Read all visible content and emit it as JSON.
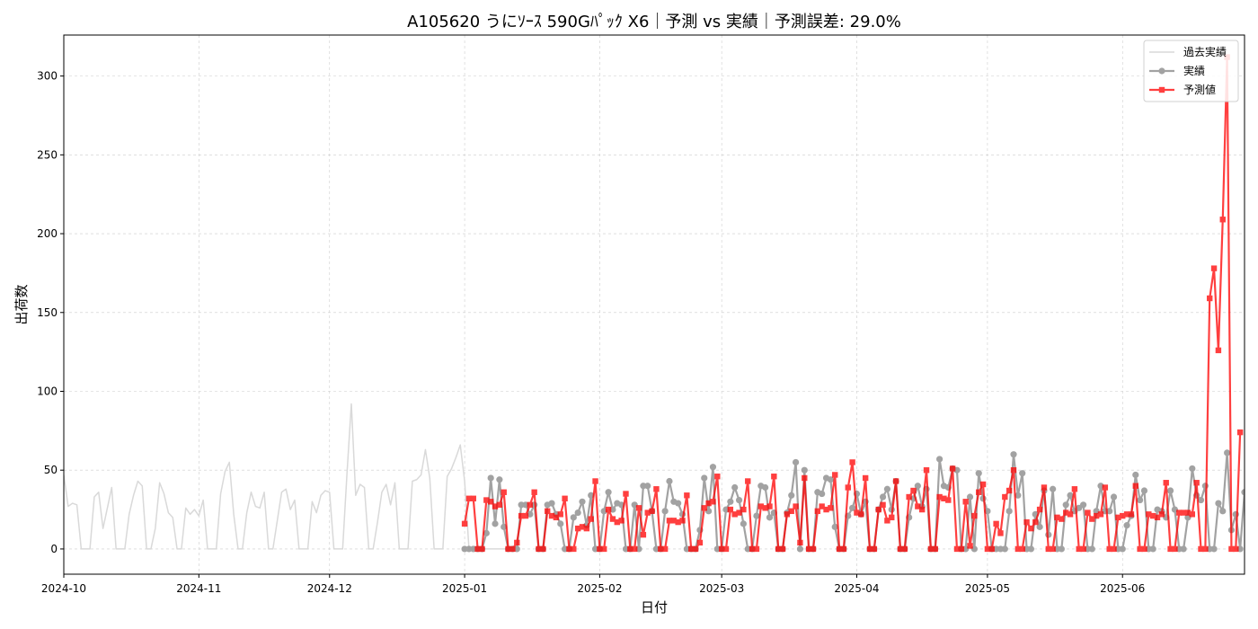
{
  "chart_data": {
    "type": "line",
    "title": "A105620 うにｿｰｽ 590Gﾊﾟｯｸ X6｜予測 vs 実績｜予測誤差: 29.0%",
    "xlabel": "日付",
    "ylabel": "出荷数",
    "xlim": [
      "2024-10-01",
      "2025-06-29"
    ],
    "ylim": [
      -16,
      326
    ],
    "x_ticks": [
      "2024-10",
      "2024-11",
      "2024-12",
      "2025-01",
      "2025-02",
      "2025-03",
      "2025-04",
      "2025-05",
      "2025-06"
    ],
    "y_ticks": [
      0,
      50,
      100,
      150,
      200,
      250,
      300
    ],
    "grid": true,
    "legend_position": "top-right",
    "colors": {
      "history": "#d9d9d9",
      "actual": "#999999",
      "forecast": "#ff0000"
    },
    "series": [
      {
        "name": "過去実績",
        "style": "line",
        "start_date": "2024-10-01",
        "values": [
          47,
          27,
          29,
          28,
          0,
          0,
          0,
          33,
          36,
          13,
          26,
          39,
          0,
          0,
          0,
          22,
          34,
          43,
          40,
          0,
          0,
          13,
          42,
          35,
          23,
          20,
          0,
          0,
          26,
          22,
          25,
          21,
          31,
          0,
          0,
          0,
          35,
          49,
          55,
          22,
          0,
          0,
          23,
          36,
          27,
          26,
          36,
          0,
          0,
          18,
          36,
          38,
          25,
          31,
          0,
          0,
          0,
          30,
          23,
          34,
          37,
          36,
          0,
          0,
          0,
          48,
          92,
          34,
          41,
          39,
          0,
          0,
          17,
          36,
          41,
          28,
          42,
          0,
          0,
          0,
          43,
          44,
          47,
          63,
          45,
          0,
          0,
          0,
          46,
          51,
          58,
          66,
          43,
          0,
          0,
          0,
          0,
          0,
          0,
          0,
          0,
          0,
          0
        ]
      },
      {
        "name": "実績",
        "style": "line+circle",
        "start_date": "2025-01-01",
        "values": [
          0,
          0,
          0,
          0,
          0,
          10,
          45,
          16,
          44,
          14,
          0,
          0,
          0,
          28,
          28,
          22,
          28,
          0,
          0,
          28,
          29,
          22,
          16,
          0,
          0,
          20,
          23,
          30,
          15,
          34,
          0,
          0,
          24,
          36,
          25,
          29,
          28,
          0,
          0,
          28,
          0,
          40,
          40,
          24,
          0,
          0,
          24,
          43,
          30,
          29,
          22,
          0,
          0,
          0,
          12,
          45,
          24,
          52,
          0,
          0,
          25,
          30,
          39,
          31,
          16,
          0,
          0,
          21,
          40,
          39,
          20,
          23,
          0,
          0,
          23,
          34,
          55,
          0,
          50,
          0,
          0,
          36,
          35,
          45,
          44,
          14,
          0,
          0,
          21,
          26,
          35,
          22,
          30,
          0,
          0,
          25,
          33,
          38,
          25,
          43,
          0,
          0,
          20,
          32,
          40,
          27,
          38,
          0,
          0,
          57,
          40,
          39,
          51,
          50,
          0,
          0,
          33,
          0,
          48,
          32,
          24,
          0,
          0,
          0,
          0,
          24,
          60,
          34,
          48,
          0,
          0,
          22,
          14,
          37,
          9,
          38,
          0,
          0,
          28,
          34,
          24,
          26,
          28,
          0,
          0,
          24,
          40,
          24,
          24,
          33,
          0,
          0,
          15,
          21,
          47,
          31,
          37,
          0,
          0,
          25,
          24,
          20,
          37,
          25,
          0,
          0,
          20,
          51,
          34,
          31,
          40,
          0,
          0,
          29,
          24,
          61,
          12,
          22,
          0,
          36
        ]
      },
      {
        "name": "予測値",
        "style": "line+square",
        "start_date": "2025-01-01",
        "values": [
          16,
          32,
          32,
          0,
          0,
          31,
          30,
          27,
          28,
          36,
          0,
          0,
          4,
          21,
          21,
          28,
          36,
          0,
          0,
          24,
          21,
          20,
          22,
          32,
          0,
          0,
          13,
          14,
          13,
          19,
          43,
          0,
          0,
          25,
          19,
          17,
          18,
          35,
          0,
          0,
          26,
          9,
          23,
          24,
          38,
          0,
          0,
          18,
          18,
          17,
          18,
          34,
          0,
          0,
          4,
          26,
          29,
          30,
          46,
          0,
          0,
          25,
          22,
          23,
          25,
          43,
          0,
          0,
          27,
          26,
          27,
          46,
          0,
          0,
          22,
          24,
          27,
          4,
          45,
          0,
          0,
          24,
          27,
          25,
          26,
          47,
          0,
          0,
          39,
          55,
          23,
          22,
          45,
          0,
          0,
          25,
          28,
          18,
          20,
          43,
          0,
          0,
          33,
          37,
          27,
          25,
          50,
          0,
          0,
          33,
          32,
          31,
          51,
          0,
          0,
          30,
          2,
          21,
          36,
          41,
          0,
          0,
          16,
          10,
          33,
          37,
          50,
          0,
          0,
          17,
          13,
          17,
          25,
          39,
          0,
          0,
          20,
          19,
          23,
          22,
          38,
          0,
          0,
          23,
          19,
          21,
          22,
          39,
          0,
          0,
          20,
          21,
          22,
          22,
          40,
          0,
          0,
          22,
          21,
          20,
          22,
          42,
          0,
          0,
          23,
          23,
          23,
          22,
          42,
          0,
          0,
          159,
          178,
          126,
          209,
          312,
          0,
          0,
          74
        ]
      }
    ]
  }
}
